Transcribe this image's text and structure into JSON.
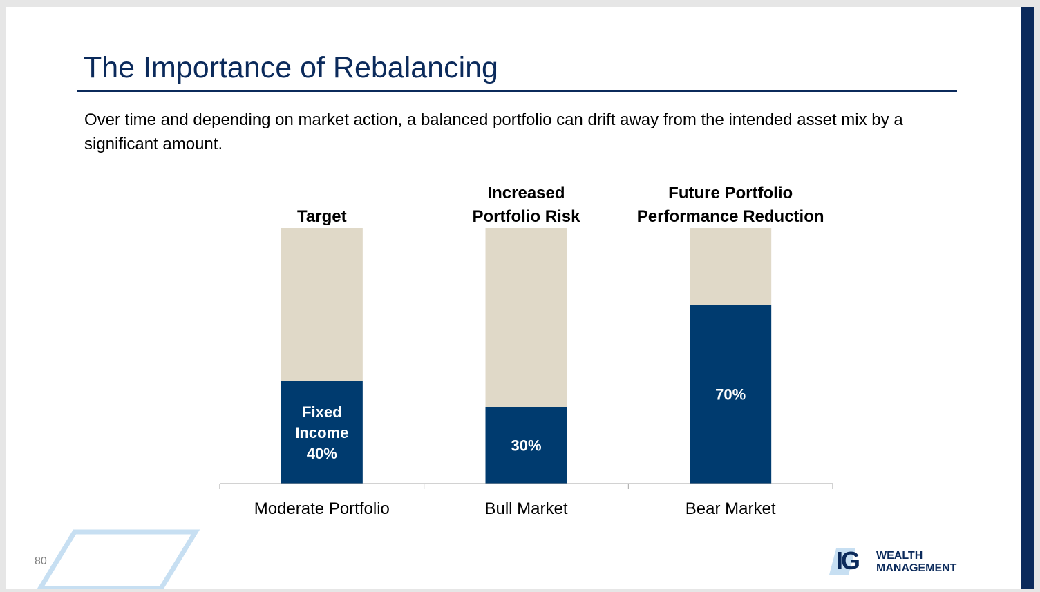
{
  "slide": {
    "title": "The Importance of Rebalancing",
    "subtitle": "Over time and depending on market action, a balanced portfolio can drift away from the intended asset mix by a significant amount.",
    "page_number": "80"
  },
  "logo": {
    "mark": "IG",
    "line1": "WEALTH",
    "line2": "MANAGEMENT"
  },
  "colors": {
    "fixed_income": "#003b6f",
    "remainder": "#e0d9c8",
    "title": "#0b2a5b",
    "accent_shape": "#c7dff2"
  },
  "chart_data": {
    "type": "bar",
    "stacked": true,
    "categories": [
      "Moderate Portfolio",
      "Bull Market",
      "Bear Market"
    ],
    "series": [
      {
        "name": "Fixed Income",
        "values": [
          40,
          30,
          70
        ]
      },
      {
        "values": [
          60,
          70,
          30
        ]
      }
    ],
    "ylim": [
      0,
      100
    ],
    "annotations": [
      [
        "Target"
      ],
      [
        "Increased",
        "Portfolio  Risk"
      ],
      [
        "Future Portfolio",
        "Performance Reduction"
      ]
    ],
    "data_labels": [
      [
        "Fixed",
        "Income",
        "40%"
      ],
      [
        "30%"
      ],
      [
        "70%"
      ]
    ]
  }
}
